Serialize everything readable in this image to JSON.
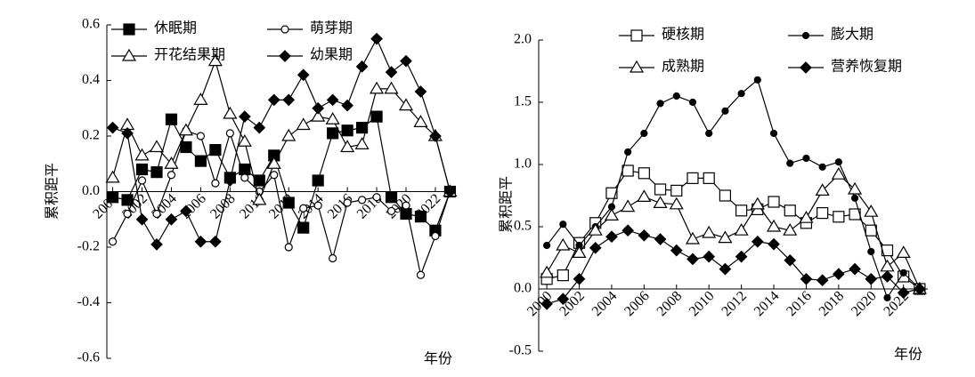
{
  "chart_data": [
    {
      "type": "line",
      "y_label": "累积距平",
      "x_label": "年份",
      "x": [
        2000,
        2001,
        2002,
        2003,
        2004,
        2005,
        2006,
        2007,
        2008,
        2009,
        2010,
        2011,
        2012,
        2013,
        2014,
        2015,
        2016,
        2017,
        2018,
        2019,
        2020,
        2021,
        2022,
        2023
      ],
      "xlim": [
        1999.6,
        2023.4
      ],
      "xticks": [
        2000,
        2002,
        2004,
        2006,
        2008,
        2010,
        2012,
        2014,
        2016,
        2018,
        2020,
        2022
      ],
      "ylim": [
        -0.6,
        0.6
      ],
      "yticks": [
        -0.6,
        -0.4,
        -0.2,
        {
          "value": 0,
          "label": "0.0"
        },
        0.2,
        0.4,
        0.6
      ],
      "series": [
        {
          "name": "休眠期",
          "color": "#000",
          "marker": "square-filled",
          "values": [
            -0.02,
            -0.03,
            0.08,
            0.07,
            0.26,
            0.16,
            0.11,
            0.15,
            0.05,
            0.08,
            0.04,
            0.13,
            -0.04,
            -0.13,
            0.04,
            0.21,
            0.22,
            0.23,
            0.27,
            -0.02,
            -0.08,
            -0.09,
            -0.14,
            0.0
          ]
        },
        {
          "name": "萌芽期",
          "color": "#000",
          "marker": "circle-open",
          "values": [
            -0.18,
            -0.08,
            0.04,
            -0.08,
            0.06,
            0.22,
            0.2,
            0.03,
            0.21,
            0.05,
            0.0,
            0.06,
            -0.2,
            -0.06,
            -0.05,
            -0.24,
            -0.04,
            -0.03,
            -0.02,
            -0.07,
            -0.05,
            -0.3,
            -0.16,
            0.0
          ]
        },
        {
          "name": "开花结果期",
          "color": "#000",
          "marker": "triangle-open",
          "values": [
            0.05,
            0.24,
            0.13,
            0.16,
            0.1,
            0.22,
            0.33,
            0.47,
            0.28,
            0.18,
            -0.03,
            0.1,
            0.2,
            0.24,
            0.27,
            0.26,
            0.16,
            0.17,
            0.37,
            0.37,
            0.31,
            0.25,
            0.2,
            0.0
          ]
        },
        {
          "name": "幼果期",
          "color": "#000",
          "marker": "diamond-filled",
          "values": [
            0.23,
            0.21,
            -0.1,
            -0.19,
            -0.1,
            -0.07,
            -0.18,
            -0.18,
            0.04,
            0.27,
            0.23,
            0.33,
            0.33,
            0.42,
            0.3,
            0.33,
            0.31,
            0.45,
            0.55,
            0.43,
            0.47,
            0.36,
            0.2,
            0.0
          ]
        }
      ]
    },
    {
      "type": "line",
      "y_label": "累积距平",
      "x_label": "年份",
      "x": [
        2000,
        2001,
        2002,
        2003,
        2004,
        2005,
        2006,
        2007,
        2008,
        2009,
        2010,
        2011,
        2012,
        2013,
        2014,
        2015,
        2016,
        2017,
        2018,
        2019,
        2020,
        2021,
        2022,
        2023
      ],
      "xlim": [
        1999.5,
        2023.5
      ],
      "xticks": [
        2000,
        2002,
        2004,
        2006,
        2008,
        2010,
        2012,
        2014,
        2016,
        2018,
        2020,
        2022
      ],
      "ylim": [
        -0.5,
        2.0
      ],
      "yticks": [
        -0.5,
        {
          "value": 0,
          "label": "0.0"
        },
        0.5,
        {
          "value": 1,
          "label": "1.0"
        },
        1.5,
        {
          "value": 2,
          "label": "2.0"
        }
      ],
      "series": [
        {
          "name": "硬核期",
          "color": "#000",
          "marker": "square-open",
          "values": [
            0.08,
            0.11,
            0.37,
            0.53,
            0.77,
            0.95,
            0.93,
            0.8,
            0.79,
            0.89,
            0.89,
            0.75,
            0.63,
            0.64,
            0.7,
            0.63,
            0.53,
            0.61,
            0.58,
            0.6,
            0.47,
            0.31,
            0.1,
            0.0
          ]
        },
        {
          "name": "膨大期",
          "color": "#000",
          "marker": "circle-filled",
          "values": [
            0.35,
            0.52,
            0.35,
            0.5,
            0.66,
            1.1,
            1.25,
            1.49,
            1.55,
            1.5,
            1.25,
            1.43,
            1.57,
            1.68,
            1.25,
            1.01,
            1.05,
            0.98,
            1.02,
            0.73,
            0.3,
            -0.07,
            0.13,
            0.0
          ]
        },
        {
          "name": "成熟期",
          "color": "#000",
          "marker": "triangle-open",
          "values": [
            0.13,
            0.35,
            0.29,
            0.47,
            0.59,
            0.66,
            0.74,
            0.69,
            0.68,
            0.4,
            0.45,
            0.41,
            0.47,
            0.68,
            0.5,
            0.47,
            0.57,
            0.79,
            0.92,
            0.8,
            0.62,
            0.18,
            0.29,
            0.0
          ]
        },
        {
          "name": "营养恢复期",
          "color": "#000",
          "marker": "diamond-filled",
          "values": [
            -0.12,
            -0.08,
            0.08,
            0.33,
            0.42,
            0.47,
            0.43,
            0.4,
            0.31,
            0.24,
            0.26,
            0.16,
            0.26,
            0.38,
            0.36,
            0.23,
            0.08,
            0.07,
            0.12,
            0.16,
            0.08,
            0.1,
            -0.03,
            0.0
          ]
        }
      ]
    }
  ]
}
